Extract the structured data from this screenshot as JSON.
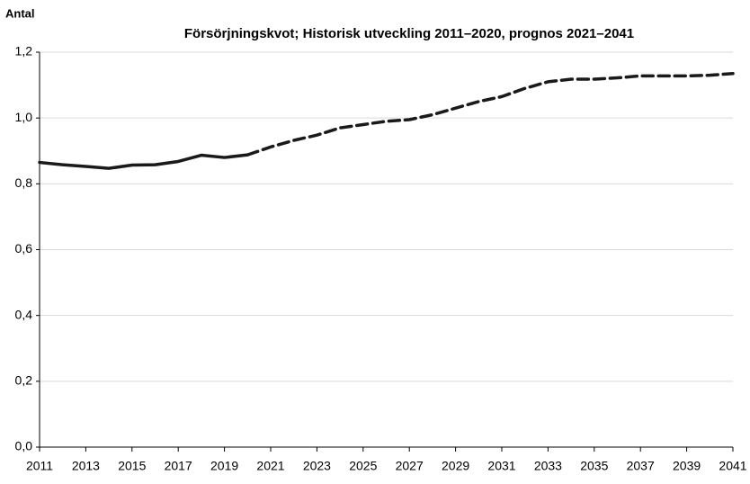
{
  "chart_data": {
    "type": "line",
    "title": "Försörjningskvot; Historisk utveckling 2011–2020, prognos 2021–2041",
    "y_label": "Antal",
    "x": [
      2011,
      2012,
      2013,
      2014,
      2015,
      2016,
      2017,
      2018,
      2019,
      2020,
      2021,
      2022,
      2023,
      2024,
      2025,
      2026,
      2027,
      2028,
      2029,
      2030,
      2031,
      2032,
      2033,
      2034,
      2035,
      2036,
      2037,
      2038,
      2039,
      2040,
      2041
    ],
    "series": [
      {
        "color": "#1a1a1a",
        "line_style": "solid",
        "values": [
          0.865,
          0.858,
          0.853,
          0.847,
          0.857,
          0.858,
          0.868,
          0.887,
          0.88,
          0.888,
          null,
          null,
          null,
          null,
          null,
          null,
          null,
          null,
          null,
          null,
          null,
          null,
          null,
          null,
          null,
          null,
          null,
          null,
          null,
          null,
          null
        ]
      },
      {
        "color": "#1a1a1a",
        "line_style": "dashed",
        "values": [
          null,
          null,
          null,
          null,
          null,
          null,
          null,
          null,
          null,
          0.888,
          0.912,
          0.932,
          0.948,
          0.97,
          0.98,
          0.99,
          0.995,
          1.01,
          1.03,
          1.05,
          1.065,
          1.09,
          1.11,
          1.118,
          1.118,
          1.122,
          1.128,
          1.128,
          1.128,
          1.13,
          1.135
        ]
      }
    ],
    "xlim": [
      2011,
      2041
    ],
    "xticks": [
      2011,
      2013,
      2015,
      2017,
      2019,
      2021,
      2023,
      2025,
      2027,
      2029,
      2031,
      2033,
      2035,
      2037,
      2039,
      2041
    ],
    "ylim": [
      0,
      1.2
    ],
    "yticks": [
      {
        "value": 0,
        "label": "0,0"
      },
      {
        "value": 0.2,
        "label": "0,2"
      },
      {
        "value": 0.4,
        "label": "0,4"
      },
      {
        "value": 0.6,
        "label": "0,6"
      },
      {
        "value": 0.8,
        "label": "0,8"
      },
      {
        "value": 1.0,
        "label": "1,0"
      },
      {
        "value": 1.2,
        "label": "1,2"
      }
    ],
    "grid": true
  }
}
